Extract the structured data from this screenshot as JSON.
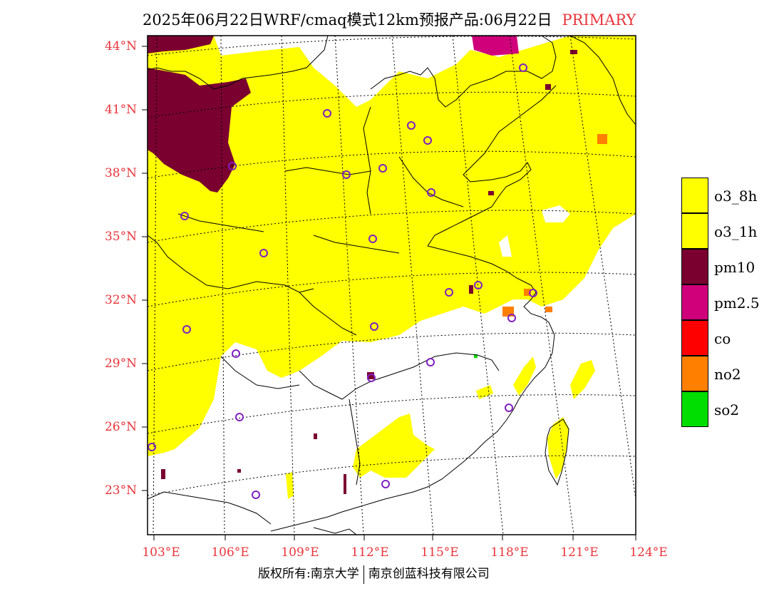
{
  "header": {
    "title": "2025年06月22日WRF/cmaq模式12km预报产品:06月22日",
    "tag": "PRIMARY"
  },
  "axes": {
    "lat_labels": [
      "44°N",
      "41°N",
      "38°N",
      "35°N",
      "32°N",
      "29°N",
      "26°N",
      "23°N"
    ],
    "lon_labels": [
      "103°E",
      "106°E",
      "109°E",
      "112°E",
      "115°E",
      "118°E",
      "121°E",
      "124°E"
    ]
  },
  "legend": {
    "items": [
      {
        "label": "o3_8h",
        "color": "#ffff00"
      },
      {
        "label": "o3_1h",
        "color": "#ffff00"
      },
      {
        "label": "pm10",
        "color": "#7a0030"
      },
      {
        "label": "pm2.5",
        "color": "#d0007a"
      },
      {
        "label": "co",
        "color": "#ff0000"
      },
      {
        "label": "no2",
        "color": "#ff7f00"
      },
      {
        "label": "so2",
        "color": "#00dd00"
      }
    ]
  },
  "footer": {
    "copyright": "版权所有:南京大学",
    "company": "南京创蓝科技有限公司"
  }
}
